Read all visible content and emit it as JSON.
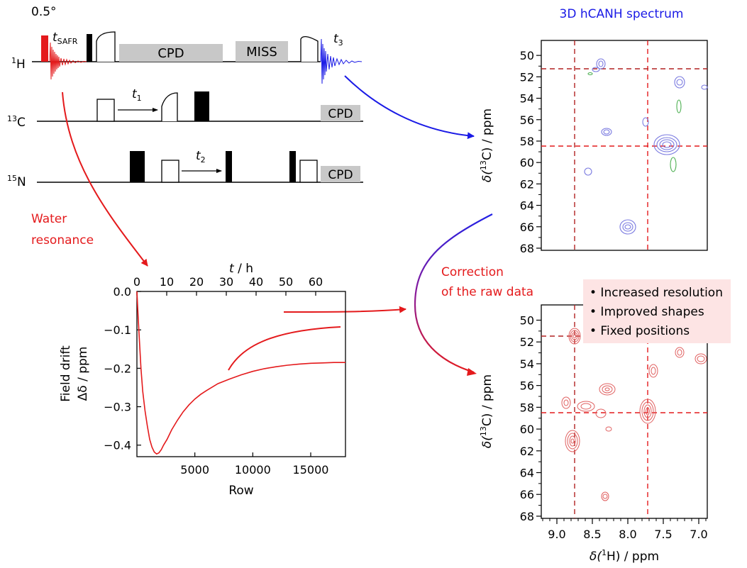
{
  "pulse_sequence": {
    "flip_angle": "0.5°",
    "t_safr": "t",
    "t_safr_sub": "SAFR",
    "t3": "t",
    "t3_sub": "3",
    "t1": "t",
    "t1_sub": "1",
    "t2": "t",
    "t2_sub": "2",
    "channels": [
      {
        "sup": "1",
        "name": "H"
      },
      {
        "sup": "13",
        "name": "C"
      },
      {
        "sup": "15",
        "name": "N"
      }
    ],
    "blocks": {
      "cpd": "CPD",
      "miss": "MISS"
    }
  },
  "annotations": {
    "water_line1": "Water",
    "water_line2": "resonance",
    "correction_line1": "Correction",
    "correction_line2": "of the raw data"
  },
  "spectrum_top": {
    "title": "3D hCANH spectrum",
    "ylabel_main": "δ(",
    "ylabel_sup": "13",
    "ylabel_tail": "C) / ppm",
    "yticks": [
      "50",
      "52",
      "54",
      "56",
      "58",
      "60",
      "62",
      "64",
      "66",
      "68"
    ]
  },
  "spectrum_bottom": {
    "ylabel_main": "δ(",
    "ylabel_sup": "13",
    "ylabel_tail": "C) / ppm",
    "xlabel_main": "δ(",
    "xlabel_sup": "1",
    "xlabel_tail": "H) / ppm",
    "yticks": [
      "50",
      "52",
      "54",
      "56",
      "58",
      "60",
      "62",
      "64",
      "66",
      "68"
    ],
    "xticks": [
      "9.0",
      "8.5",
      "8.0",
      "7.5",
      "7.0"
    ],
    "legend": [
      "• Increased resolution",
      "• Improved shapes",
      "• Fixed positions"
    ]
  },
  "chart_data": {
    "type": "line",
    "title": "",
    "xlabel": "Row",
    "x2label": "t / h",
    "ylabel_line1": "Field drift",
    "ylabel_line2": "Δδ / ppm",
    "xlim": [
      0,
      18000
    ],
    "x2lim": [
      0,
      70
    ],
    "ylim": [
      -0.43,
      0.0
    ],
    "xticks": [
      "5000",
      "10000",
      "15000"
    ],
    "x2ticks": [
      "0",
      "10",
      "20",
      "30",
      "40",
      "50",
      "60"
    ],
    "yticks": [
      "0.0",
      "−0.1",
      "−0.2",
      "−0.3",
      "−0.4"
    ],
    "series": [
      {
        "color": "#e41a1c",
        "x": [
          0,
          80,
          200,
          350,
          500,
          700,
          900,
          1100,
          1300,
          1500,
          1700,
          1900,
          2100,
          2300,
          2600,
          3000,
          3500,
          4000,
          4500,
          5000,
          5500,
          6000,
          7000,
          8000,
          9000,
          10000,
          11000,
          12000,
          13000,
          14000,
          15000,
          16000,
          17000,
          18000
        ],
        "y": [
          0.0,
          -0.05,
          -0.12,
          -0.2,
          -0.26,
          -0.31,
          -0.35,
          -0.385,
          -0.405,
          -0.418,
          -0.423,
          -0.42,
          -0.412,
          -0.4,
          -0.385,
          -0.36,
          -0.335,
          -0.313,
          -0.295,
          -0.28,
          -0.268,
          -0.258,
          -0.24,
          -0.228,
          -0.217,
          -0.208,
          -0.201,
          -0.196,
          -0.192,
          -0.189,
          -0.187,
          -0.186,
          -0.185,
          -0.185
        ]
      }
    ]
  }
}
